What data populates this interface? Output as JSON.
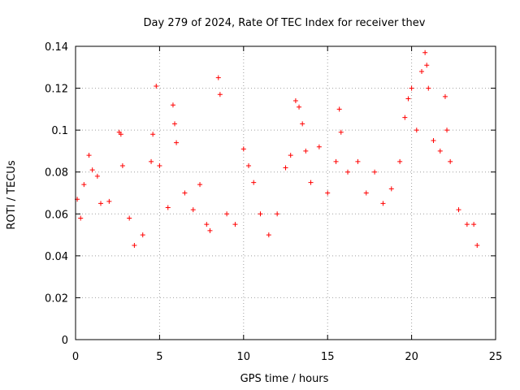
{
  "chart_data": {
    "type": "scatter",
    "title": "Day 279 of 2024, Rate Of TEC Index for receiver thev",
    "xlabel": "GPS time / hours",
    "ylabel": "ROTI / TECUs",
    "xlim": [
      0,
      25
    ],
    "ylim": [
      0,
      0.14
    ],
    "x_ticks": [
      0,
      5,
      10,
      15,
      20,
      25
    ],
    "y_ticks": [
      0,
      0.02,
      0.04,
      0.06,
      0.08,
      0.1,
      0.12,
      0.14
    ],
    "x_tick_labels": [
      "0",
      "5",
      "10",
      "15",
      "20",
      "25"
    ],
    "y_tick_labels": [
      "0",
      "0.02",
      "0.04",
      "0.06",
      "0.08",
      "0.1",
      "0.12",
      "0.14"
    ],
    "grid": true,
    "legend": "none",
    "marker": "plus",
    "marker_color": "#ff0000",
    "series": [
      {
        "values": [
          {
            "x": 0.1,
            "y": 0.067
          },
          {
            "x": 0.3,
            "y": 0.058
          },
          {
            "x": 0.5,
            "y": 0.074
          },
          {
            "x": 0.8,
            "y": 0.088
          },
          {
            "x": 1.0,
            "y": 0.081
          },
          {
            "x": 1.3,
            "y": 0.078
          },
          {
            "x": 1.5,
            "y": 0.065
          },
          {
            "x": 2.0,
            "y": 0.066
          },
          {
            "x": 2.6,
            "y": 0.099
          },
          {
            "x": 2.7,
            "y": 0.098
          },
          {
            "x": 2.8,
            "y": 0.083
          },
          {
            "x": 3.2,
            "y": 0.058
          },
          {
            "x": 3.5,
            "y": 0.045
          },
          {
            "x": 4.0,
            "y": 0.05
          },
          {
            "x": 4.5,
            "y": 0.085
          },
          {
            "x": 4.6,
            "y": 0.098
          },
          {
            "x": 4.8,
            "y": 0.121
          },
          {
            "x": 5.0,
            "y": 0.083
          },
          {
            "x": 5.5,
            "y": 0.063
          },
          {
            "x": 5.8,
            "y": 0.112
          },
          {
            "x": 5.9,
            "y": 0.103
          },
          {
            "x": 6.0,
            "y": 0.094
          },
          {
            "x": 6.5,
            "y": 0.07
          },
          {
            "x": 7.0,
            "y": 0.062
          },
          {
            "x": 7.4,
            "y": 0.074
          },
          {
            "x": 7.8,
            "y": 0.055
          },
          {
            "x": 8.0,
            "y": 0.052
          },
          {
            "x": 8.5,
            "y": 0.125
          },
          {
            "x": 8.6,
            "y": 0.117
          },
          {
            "x": 9.0,
            "y": 0.06
          },
          {
            "x": 9.5,
            "y": 0.055
          },
          {
            "x": 10.0,
            "y": 0.091
          },
          {
            "x": 10.3,
            "y": 0.083
          },
          {
            "x": 10.6,
            "y": 0.075
          },
          {
            "x": 11.0,
            "y": 0.06
          },
          {
            "x": 11.5,
            "y": 0.05
          },
          {
            "x": 12.0,
            "y": 0.06
          },
          {
            "x": 12.5,
            "y": 0.082
          },
          {
            "x": 12.8,
            "y": 0.088
          },
          {
            "x": 13.1,
            "y": 0.114
          },
          {
            "x": 13.3,
            "y": 0.111
          },
          {
            "x": 13.5,
            "y": 0.103
          },
          {
            "x": 13.7,
            "y": 0.09
          },
          {
            "x": 14.0,
            "y": 0.075
          },
          {
            "x": 14.5,
            "y": 0.092
          },
          {
            "x": 15.0,
            "y": 0.07
          },
          {
            "x": 15.5,
            "y": 0.085
          },
          {
            "x": 15.7,
            "y": 0.11
          },
          {
            "x": 15.8,
            "y": 0.099
          },
          {
            "x": 16.2,
            "y": 0.08
          },
          {
            "x": 16.8,
            "y": 0.085
          },
          {
            "x": 17.3,
            "y": 0.07
          },
          {
            "x": 17.8,
            "y": 0.08
          },
          {
            "x": 18.3,
            "y": 0.065
          },
          {
            "x": 18.8,
            "y": 0.072
          },
          {
            "x": 19.3,
            "y": 0.085
          },
          {
            "x": 19.6,
            "y": 0.106
          },
          {
            "x": 19.8,
            "y": 0.115
          },
          {
            "x": 20.0,
            "y": 0.12
          },
          {
            "x": 20.3,
            "y": 0.1
          },
          {
            "x": 20.6,
            "y": 0.128
          },
          {
            "x": 20.8,
            "y": 0.137
          },
          {
            "x": 20.9,
            "y": 0.131
          },
          {
            "x": 21.0,
            "y": 0.12
          },
          {
            "x": 21.3,
            "y": 0.095
          },
          {
            "x": 21.7,
            "y": 0.09
          },
          {
            "x": 22.0,
            "y": 0.116
          },
          {
            "x": 22.1,
            "y": 0.1
          },
          {
            "x": 22.3,
            "y": 0.085
          },
          {
            "x": 22.8,
            "y": 0.062
          },
          {
            "x": 23.3,
            "y": 0.055
          },
          {
            "x": 23.7,
            "y": 0.055
          },
          {
            "x": 23.9,
            "y": 0.045
          }
        ]
      }
    ]
  }
}
